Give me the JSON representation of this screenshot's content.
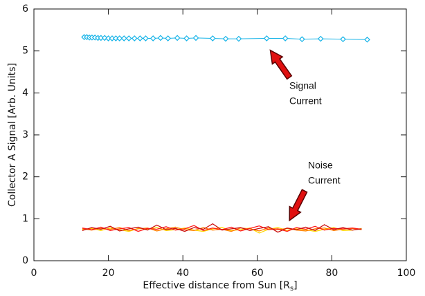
{
  "chart_data": {
    "type": "line",
    "ylabel": "Collector A Signal   [Arb. Units]",
    "xlabel_parts": [
      "Effective distance from Sun [R",
      "s",
      "]"
    ],
    "xlim": [
      0,
      100
    ],
    "xticks": [
      0,
      20,
      40,
      60,
      80,
      100
    ],
    "ylim": [
      0,
      6
    ],
    "yticks": [
      0,
      1,
      2,
      3,
      4,
      5,
      6
    ],
    "annotations": [
      [
        "Signal",
        "Current"
      ],
      [
        "Noise",
        "Current"
      ]
    ],
    "series": [
      {
        "color": "#18b4e8",
        "marker": "diamond",
        "x": [
          13.5,
          14.2,
          14.9,
          15.6,
          16.4,
          17.2,
          18,
          19,
          20,
          21,
          22,
          23,
          24.2,
          25.5,
          27,
          28.5,
          30,
          32,
          34,
          36,
          38.5,
          41,
          43.5,
          48,
          51.5,
          55,
          62.5,
          67.5,
          72,
          77,
          83,
          89.5
        ],
        "values": [
          5.33,
          5.33,
          5.32,
          5.32,
          5.32,
          5.31,
          5.31,
          5.31,
          5.3,
          5.3,
          5.3,
          5.3,
          5.3,
          5.3,
          5.3,
          5.3,
          5.3,
          5.3,
          5.31,
          5.3,
          5.31,
          5.3,
          5.31,
          5.3,
          5.29,
          5.29,
          5.3,
          5.3,
          5.28,
          5.29,
          5.28,
          5.27
        ]
      },
      {
        "color": "#ffd700",
        "x": [
          13,
          15.5,
          18,
          20.5,
          23,
          25.5,
          28,
          30.5,
          33,
          35.5,
          38,
          40.5,
          43,
          45.5,
          48,
          50.5,
          53,
          55.5,
          58,
          60.5,
          63,
          65.5,
          68,
          70.5,
          73,
          75.5,
          78,
          80.5,
          83,
          85.5,
          88
        ],
        "values": [
          0.74,
          0.77,
          0.72,
          0.78,
          0.74,
          0.7,
          0.77,
          0.75,
          0.79,
          0.72,
          0.74,
          0.78,
          0.73,
          0.7,
          0.76,
          0.79,
          0.72,
          0.74,
          0.78,
          0.66,
          0.75,
          0.79,
          0.72,
          0.76,
          0.74,
          0.7,
          0.75,
          0.79,
          0.72,
          0.73,
          0.77
        ]
      },
      {
        "color": "#ff7f00",
        "x": [
          13,
          15.5,
          18,
          20.5,
          23,
          25.5,
          28,
          30.5,
          33,
          35.5,
          38,
          40.5,
          43,
          45.5,
          48,
          50.5,
          53,
          55.5,
          58,
          60.5,
          63,
          65.5,
          68,
          70.5,
          73,
          75.5,
          78,
          80.5,
          83,
          85.5,
          88
        ],
        "values": [
          0.76,
          0.73,
          0.77,
          0.75,
          0.79,
          0.72,
          0.76,
          0.78,
          0.71,
          0.76,
          0.8,
          0.74,
          0.72,
          0.79,
          0.73,
          0.75,
          0.7,
          0.78,
          0.76,
          0.71,
          0.78,
          0.74,
          0.77,
          0.73,
          0.71,
          0.76,
          0.78,
          0.72,
          0.75,
          0.77,
          0.74
        ]
      },
      {
        "color": "#ff1a1a",
        "x": [
          13,
          15.5,
          18,
          20.5,
          23,
          25.5,
          28,
          30.5,
          33,
          35.5,
          38,
          40.5,
          43,
          45.5,
          48,
          50.5,
          53,
          55.5,
          58,
          60.5,
          63,
          65.5,
          68,
          70.5,
          73,
          75.5,
          78,
          80.5,
          83,
          85.5,
          88
        ],
        "values": [
          0.78,
          0.74,
          0.8,
          0.72,
          0.76,
          0.79,
          0.7,
          0.77,
          0.75,
          0.81,
          0.73,
          0.76,
          0.84,
          0.72,
          0.78,
          0.74,
          0.8,
          0.71,
          0.77,
          0.83,
          0.74,
          0.76,
          0.7,
          0.79,
          0.75,
          0.82,
          0.73,
          0.77,
          0.76,
          0.78,
          0.75
        ]
      },
      {
        "color": "#cc1010",
        "x": [
          13,
          15.5,
          18,
          20.5,
          23,
          25.5,
          28,
          30.5,
          33,
          35.5,
          38,
          40.5,
          43,
          45.5,
          48,
          50.5,
          53,
          55.5,
          58,
          60.5,
          63,
          65.5,
          68,
          70.5,
          73,
          75.5,
          78,
          80.5,
          83,
          85.5,
          88
        ],
        "values": [
          0.72,
          0.79,
          0.75,
          0.82,
          0.71,
          0.76,
          0.8,
          0.73,
          0.85,
          0.74,
          0.77,
          0.7,
          0.79,
          0.75,
          0.88,
          0.73,
          0.76,
          0.79,
          0.72,
          0.77,
          0.81,
          0.68,
          0.78,
          0.74,
          0.8,
          0.72,
          0.86,
          0.74,
          0.79,
          0.73,
          0.76
        ]
      }
    ]
  }
}
